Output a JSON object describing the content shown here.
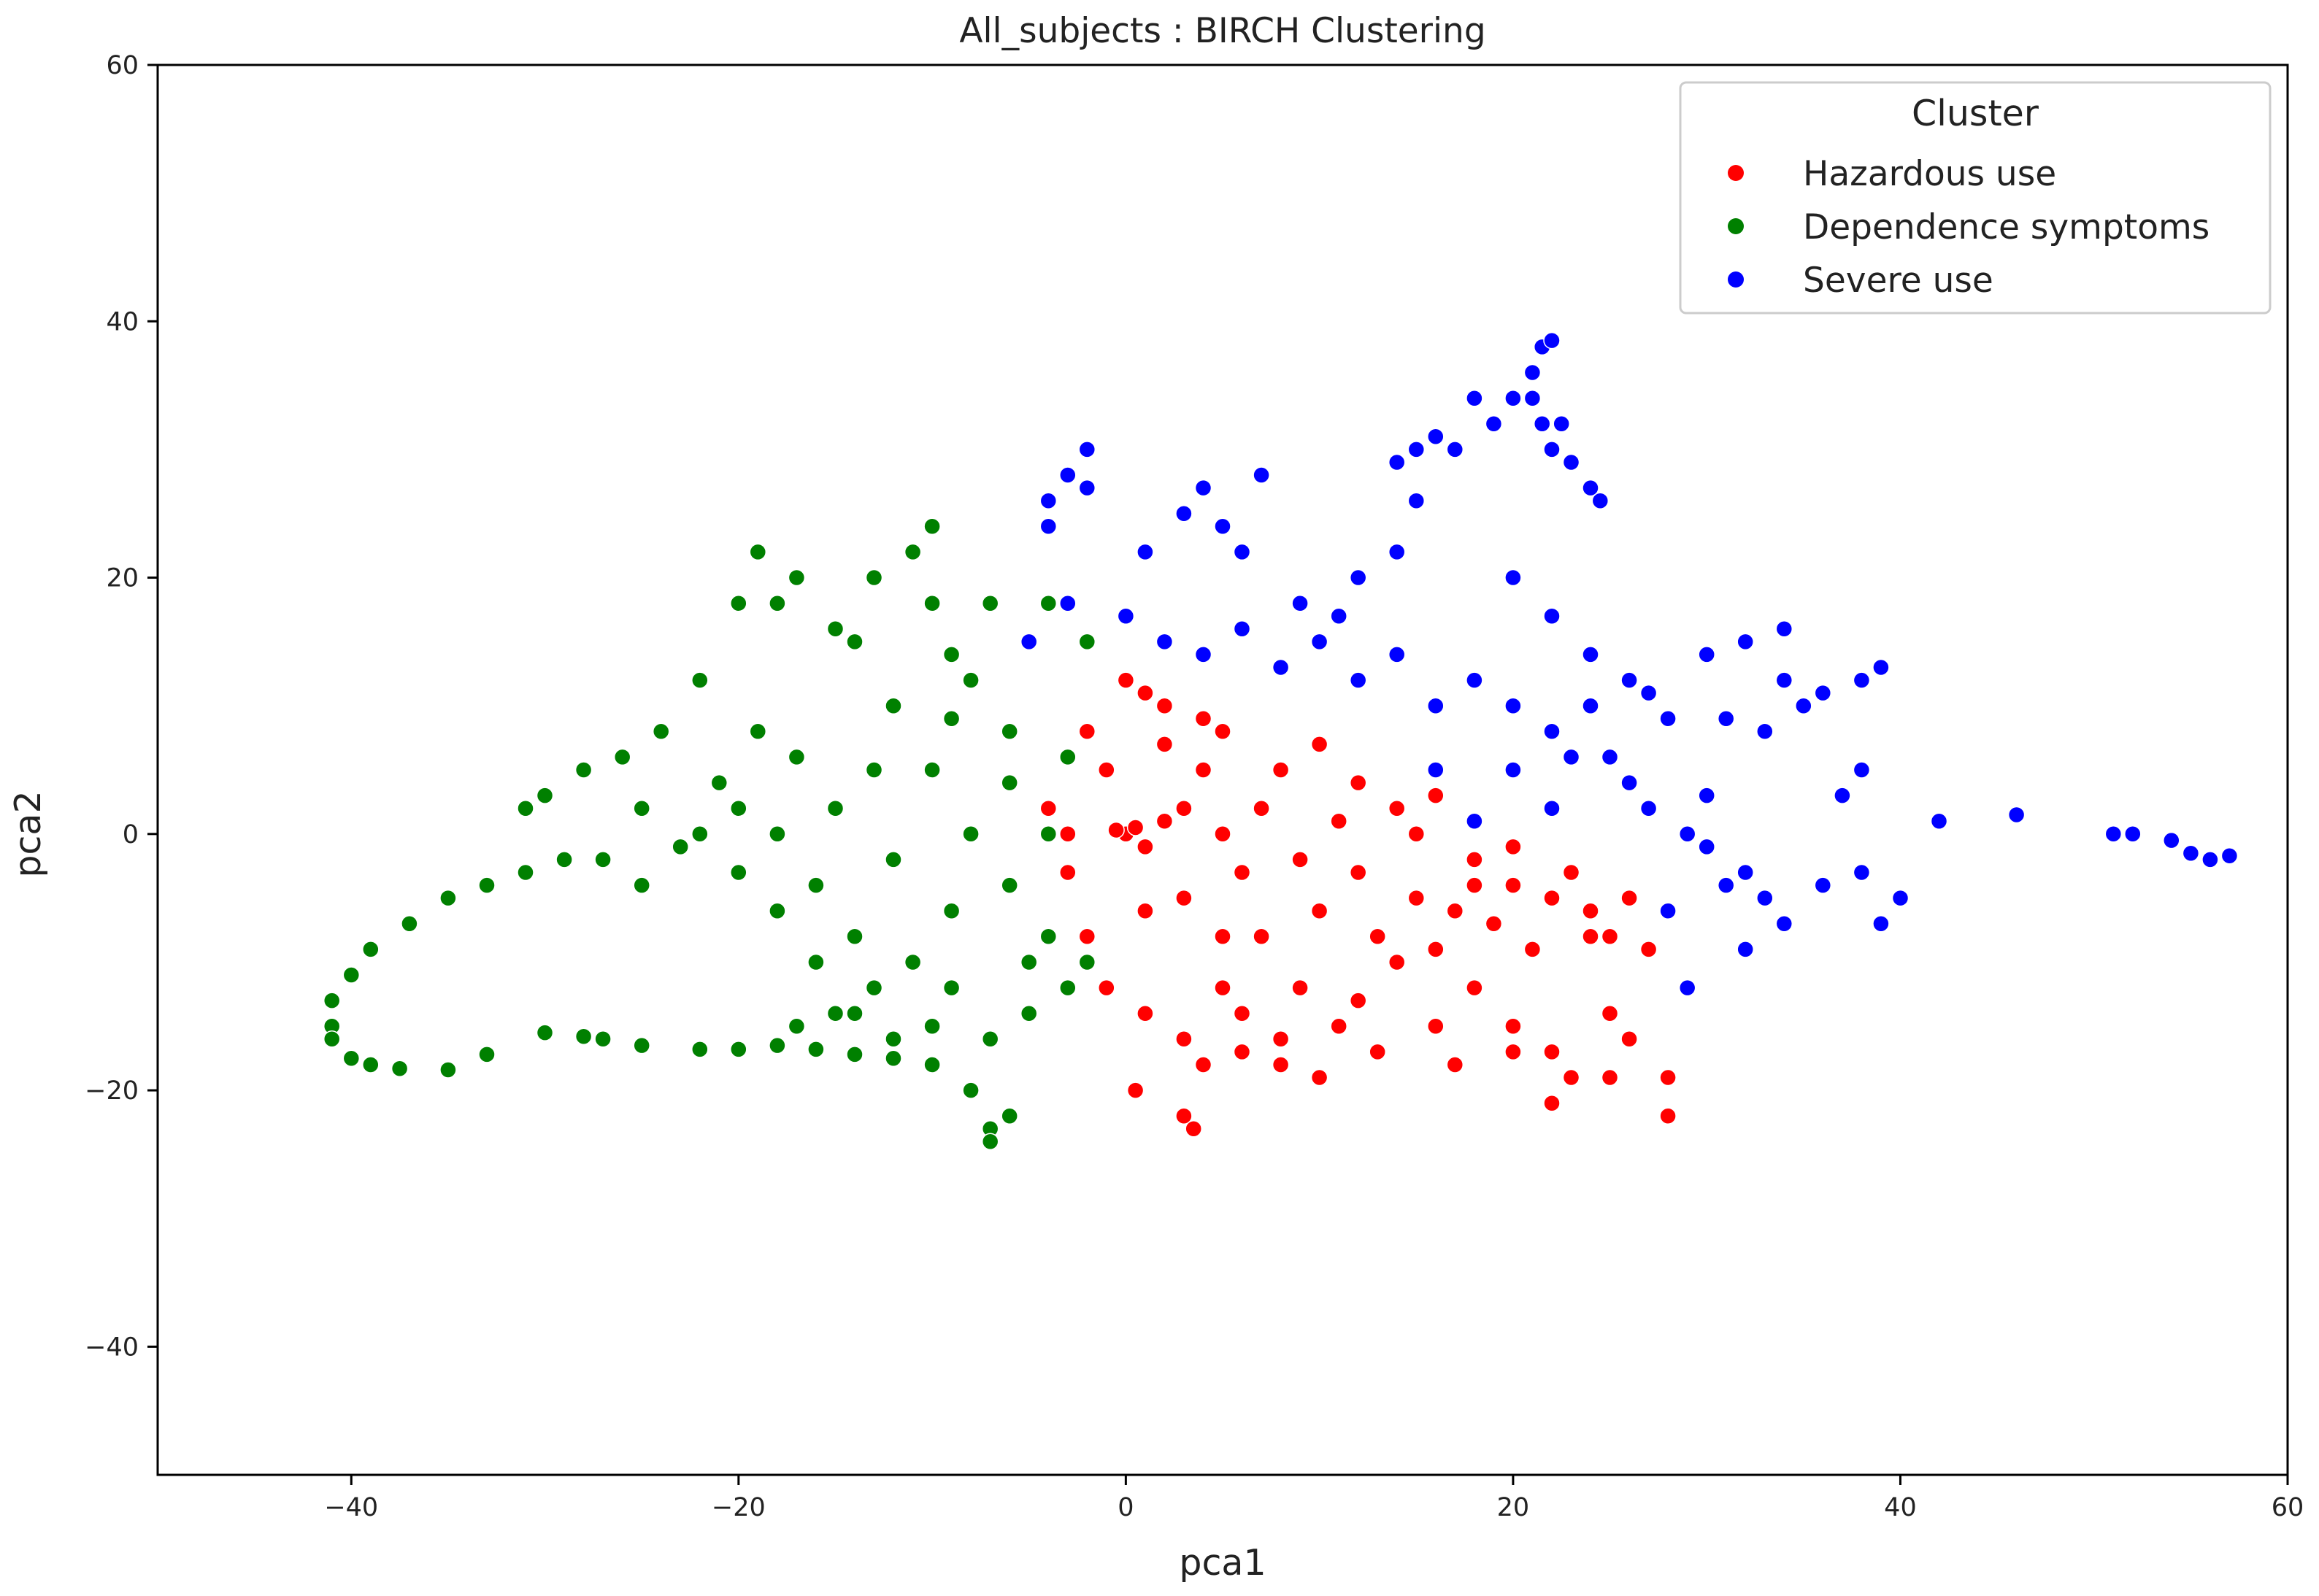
{
  "chart_data": {
    "type": "scatter",
    "title": "All_subjects : BIRCH Clustering",
    "xlabel": "pca1",
    "ylabel": "pca2",
    "xlim": [
      -50,
      60
    ],
    "ylim": [
      -50,
      60
    ],
    "xticks": [
      -40,
      -20,
      0,
      20,
      40,
      60
    ],
    "yticks": [
      -40,
      -20,
      0,
      20,
      40,
      60
    ],
    "xtick_labels": [
      "−40",
      "−20",
      "0",
      "20",
      "40",
      "60"
    ],
    "ytick_labels": [
      "−40",
      "−20",
      "0",
      "20",
      "40",
      "60"
    ],
    "grid": false,
    "legend": {
      "title": "Cluster",
      "placement": "top-right"
    },
    "series": [
      {
        "name": "Hazardous use",
        "color": "#ff0000",
        "points": [
          [
            0,
            0
          ],
          [
            0.5,
            0.5
          ],
          [
            -0.5,
            0.3
          ],
          [
            1,
            -1
          ],
          [
            2,
            1
          ],
          [
            3,
            2
          ],
          [
            4,
            5
          ],
          [
            5,
            8
          ],
          [
            2,
            10
          ],
          [
            0,
            12
          ],
          [
            -2,
            8
          ],
          [
            -4,
            2
          ],
          [
            -3,
            -3
          ],
          [
            -2,
            -8
          ],
          [
            -1,
            -12
          ],
          [
            1,
            -14
          ],
          [
            3,
            -16
          ],
          [
            5,
            -12
          ],
          [
            7,
            -8
          ],
          [
            10,
            -6
          ],
          [
            12,
            -3
          ],
          [
            15,
            0
          ],
          [
            18,
            -2
          ],
          [
            20,
            -4
          ],
          [
            22,
            -5
          ],
          [
            24,
            -6
          ],
          [
            26,
            -5
          ],
          [
            8,
            5
          ],
          [
            10,
            7
          ],
          [
            12,
            4
          ],
          [
            14,
            2
          ],
          [
            16,
            3
          ],
          [
            6,
            -3
          ],
          [
            9,
            -12
          ],
          [
            11,
            -15
          ],
          [
            8,
            -18
          ],
          [
            4,
            -18
          ],
          [
            6,
            -17
          ],
          [
            13,
            -17
          ],
          [
            16,
            -15
          ],
          [
            14,
            -10
          ],
          [
            18,
            -12
          ],
          [
            20,
            -15
          ],
          [
            22,
            -17
          ],
          [
            23,
            -19
          ],
          [
            25,
            -14
          ],
          [
            26,
            -16
          ],
          [
            28,
            -19
          ],
          [
            28,
            -22
          ],
          [
            22,
            -21
          ],
          [
            20,
            -17
          ],
          [
            17,
            -18
          ],
          [
            25,
            -19
          ],
          [
            24,
            -8
          ],
          [
            0.5,
            -20
          ],
          [
            3,
            -22
          ],
          [
            3.5,
            -23
          ],
          [
            10,
            -19
          ],
          [
            5,
            0
          ],
          [
            7,
            2
          ],
          [
            3,
            -5
          ],
          [
            5,
            -8
          ],
          [
            9,
            -2
          ],
          [
            11,
            1
          ],
          [
            13,
            -8
          ],
          [
            15,
            -5
          ],
          [
            17,
            -6
          ],
          [
            19,
            -7
          ],
          [
            21,
            -9
          ],
          [
            2,
            7
          ],
          [
            4,
            9
          ],
          [
            -1,
            5
          ],
          [
            -3,
            0
          ],
          [
            1,
            -6
          ],
          [
            6,
            -14
          ],
          [
            8,
            -16
          ],
          [
            12,
            -13
          ],
          [
            16,
            -9
          ],
          [
            18,
            -4
          ],
          [
            20,
            -1
          ],
          [
            23,
            -3
          ],
          [
            25,
            -8
          ],
          [
            27,
            -9
          ],
          [
            1,
            11
          ]
        ]
      },
      {
        "name": "Dependence symptoms",
        "color": "#008000",
        "points": [
          [
            -8,
            0
          ],
          [
            -10,
            5
          ],
          [
            -12,
            10
          ],
          [
            -14,
            15
          ],
          [
            -10,
            18
          ],
          [
            -8,
            12
          ],
          [
            -6,
            8
          ],
          [
            -5,
            15
          ],
          [
            -7,
            18
          ],
          [
            -11,
            22
          ],
          [
            -10,
            24
          ],
          [
            -13,
            20
          ],
          [
            -15,
            16
          ],
          [
            -17,
            20
          ],
          [
            -18,
            18
          ],
          [
            -19,
            22
          ],
          [
            -20,
            18
          ],
          [
            -22,
            12
          ],
          [
            -24,
            8
          ],
          [
            -26,
            6
          ],
          [
            -28,
            5
          ],
          [
            -30,
            3
          ],
          [
            -31,
            2
          ],
          [
            -25,
            2
          ],
          [
            -22,
            0
          ],
          [
            -20,
            -3
          ],
          [
            -18,
            -6
          ],
          [
            -16,
            -10
          ],
          [
            -14,
            -14
          ],
          [
            -12,
            -16
          ],
          [
            -10,
            -18
          ],
          [
            -8,
            -20
          ],
          [
            -7,
            -23
          ],
          [
            -6,
            -22
          ],
          [
            -7,
            -24
          ],
          [
            -5,
            -14
          ],
          [
            -4,
            -8
          ],
          [
            -3,
            -12
          ],
          [
            -2,
            -10
          ],
          [
            -6,
            -4
          ],
          [
            -9,
            -6
          ],
          [
            -12,
            -2
          ],
          [
            -15,
            2
          ],
          [
            -17,
            6
          ],
          [
            -19,
            8
          ],
          [
            -21,
            4
          ],
          [
            -23,
            -1
          ],
          [
            -25,
            -4
          ],
          [
            -27,
            -2
          ],
          [
            -29,
            -2
          ],
          [
            -31,
            -3
          ],
          [
            -33,
            -4
          ],
          [
            -35,
            -5
          ],
          [
            -37,
            -7
          ],
          [
            -39,
            -9
          ],
          [
            -40,
            -11
          ],
          [
            -41,
            -13
          ],
          [
            -41,
            -15
          ],
          [
            -41,
            -16
          ],
          [
            -40,
            -17.5
          ],
          [
            -39,
            -18
          ],
          [
            -37.5,
            -18.3
          ],
          [
            -35,
            -18.4
          ],
          [
            -33,
            -17.2
          ],
          [
            -30,
            -15.5
          ],
          [
            -28,
            -15.8
          ],
          [
            -27,
            -16
          ],
          [
            -25,
            -16.5
          ],
          [
            -22,
            -16.8
          ],
          [
            -20,
            -16.8
          ],
          [
            -18,
            -16.5
          ],
          [
            -16,
            -16.8
          ],
          [
            -14,
            -17.2
          ],
          [
            -12,
            -17.5
          ],
          [
            -10,
            -15
          ],
          [
            -14,
            -8
          ],
          [
            -16,
            -4
          ],
          [
            -18,
            0
          ],
          [
            -20,
            2
          ],
          [
            -13,
            5
          ],
          [
            -9,
            14
          ],
          [
            -6,
            4
          ],
          [
            -4,
            0
          ],
          [
            -5,
            -10
          ],
          [
            -3,
            6
          ],
          [
            -2,
            15
          ],
          [
            -4,
            18
          ],
          [
            -9,
            9
          ],
          [
            -11,
            -10
          ],
          [
            -13,
            -12
          ],
          [
            -15,
            -14
          ],
          [
            -17,
            -15
          ],
          [
            -7,
            -16
          ],
          [
            -9,
            -12
          ]
        ]
      },
      {
        "name": "Severe use",
        "color": "#0000ff",
        "points": [
          [
            -5,
            15
          ],
          [
            -3,
            18
          ],
          [
            0,
            17
          ],
          [
            2,
            15
          ],
          [
            4,
            14
          ],
          [
            6,
            16
          ],
          [
            8,
            13
          ],
          [
            10,
            15
          ],
          [
            12,
            12
          ],
          [
            14,
            14
          ],
          [
            16,
            10
          ],
          [
            18,
            12
          ],
          [
            20,
            10
          ],
          [
            22,
            8
          ],
          [
            24,
            10
          ],
          [
            26,
            12
          ],
          [
            28,
            9
          ],
          [
            30,
            14
          ],
          [
            32,
            15
          ],
          [
            34,
            16
          ],
          [
            34,
            12
          ],
          [
            36,
            11
          ],
          [
            38,
            12
          ],
          [
            39,
            13
          ],
          [
            -4,
            26
          ],
          [
            -3,
            28
          ],
          [
            -2,
            30
          ],
          [
            -2,
            27
          ],
          [
            -4,
            24
          ],
          [
            1,
            22
          ],
          [
            3,
            25
          ],
          [
            4,
            27
          ],
          [
            5,
            24
          ],
          [
            7,
            28
          ],
          [
            6,
            22
          ],
          [
            9,
            18
          ],
          [
            11,
            17
          ],
          [
            12,
            20
          ],
          [
            14,
            22
          ],
          [
            15,
            26
          ],
          [
            15,
            30
          ],
          [
            14,
            29
          ],
          [
            16,
            31
          ],
          [
            17,
            30
          ],
          [
            18,
            34
          ],
          [
            19,
            32
          ],
          [
            20,
            34
          ],
          [
            21,
            36
          ],
          [
            21.5,
            38
          ],
          [
            22,
            38.5
          ],
          [
            21,
            34
          ],
          [
            21.5,
            32
          ],
          [
            22,
            30
          ],
          [
            22.5,
            32
          ],
          [
            23,
            29
          ],
          [
            24,
            27
          ],
          [
            24.5,
            26
          ],
          [
            20,
            20
          ],
          [
            22,
            17
          ],
          [
            24,
            14
          ],
          [
            25,
            6
          ],
          [
            27,
            2
          ],
          [
            29,
            0
          ],
          [
            30,
            -1
          ],
          [
            31,
            -4
          ],
          [
            32,
            -3
          ],
          [
            33,
            -5
          ],
          [
            34,
            -7
          ],
          [
            36,
            -4
          ],
          [
            38,
            -3
          ],
          [
            39,
            -7
          ],
          [
            40,
            -5
          ],
          [
            42,
            1
          ],
          [
            46,
            1.5
          ],
          [
            51,
            0
          ],
          [
            52,
            0
          ],
          [
            54,
            -0.5
          ],
          [
            55,
            -1.5
          ],
          [
            56,
            -2
          ],
          [
            57,
            -1.7
          ],
          [
            30,
            3
          ],
          [
            32,
            -9
          ],
          [
            29,
            -12
          ],
          [
            28,
            -6
          ],
          [
            26,
            4
          ],
          [
            22,
            2
          ],
          [
            18,
            1
          ],
          [
            16,
            5
          ],
          [
            20,
            5
          ],
          [
            23,
            6
          ],
          [
            27,
            11
          ],
          [
            31,
            9
          ],
          [
            33,
            8
          ],
          [
            35,
            10
          ],
          [
            37,
            3
          ],
          [
            38,
            5
          ]
        ]
      }
    ]
  }
}
